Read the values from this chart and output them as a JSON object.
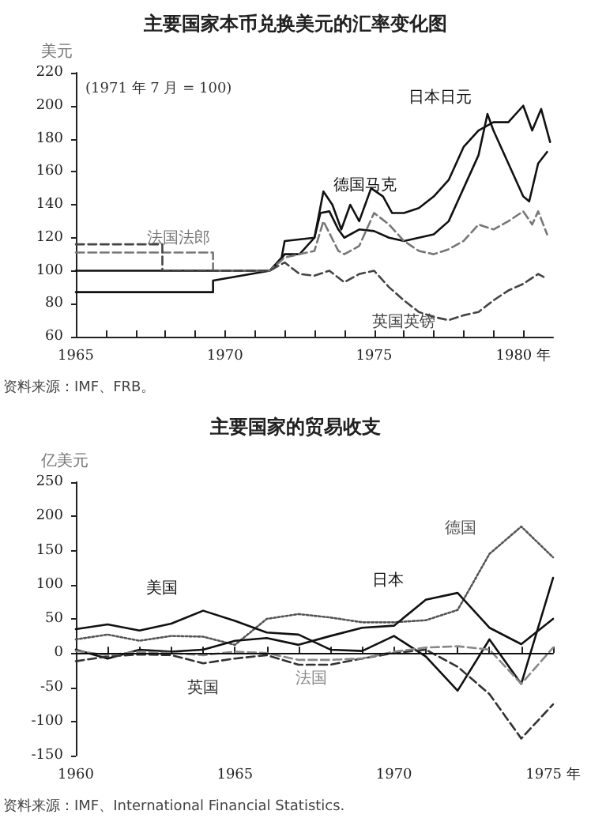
{
  "chart_data": [
    {
      "type": "line",
      "title": "主要国家本币兑换美元的汇率变化图",
      "subtitle": "(1971 年 7 月 = 100)",
      "ylabel": "美元",
      "xlim": [
        1965,
        1981
      ],
      "xticks": [
        1965,
        {
          "value": 1966,
          "label": null
        },
        {
          "value": 1967,
          "label": null
        },
        {
          "value": 1968,
          "label": null
        },
        {
          "value": 1969,
          "label": null
        },
        1970,
        {
          "value": 1971,
          "label": null
        },
        {
          "value": 1972,
          "label": null
        },
        {
          "value": 1973,
          "label": null
        },
        {
          "value": 1974,
          "label": null
        },
        1975,
        {
          "value": 1976,
          "label": null
        },
        {
          "value": 1977,
          "label": null
        },
        {
          "value": 1978,
          "label": null
        },
        {
          "value": 1979,
          "label": null
        },
        {
          "value": 1980,
          "label": "1980 年"
        }
      ],
      "ylim": [
        60,
        220
      ],
      "yticks": [
        60,
        80,
        100,
        120,
        140,
        160,
        180,
        200,
        220
      ],
      "grid": false,
      "marker": "none",
      "series": [
        {
          "name": "日本日元",
          "color": "#111111",
          "line_style": "solid",
          "x": [
            1965,
            1971.5,
            1971.9,
            1972,
            1973,
            1973.2,
            1973.5,
            1973.8,
            1974,
            1974.5,
            1975,
            1975.5,
            1976,
            1976.5,
            1977,
            1977.5,
            1978,
            1978.5,
            1978.8,
            1979,
            1979.5,
            1980,
            1980.2,
            1980.5,
            1980.8
          ],
          "values": [
            100,
            100,
            108,
            118,
            120,
            135,
            136,
            125,
            120,
            125,
            124,
            120,
            118,
            120,
            122,
            130,
            150,
            170,
            195,
            185,
            165,
            145,
            142,
            165,
            172
          ]
        },
        {
          "name": "德国马克",
          "color": "#111111",
          "line_style": "solid",
          "x": [
            1965,
            1969.6,
            1969.6,
            1971.5,
            1971.8,
            1972,
            1972.5,
            1973,
            1973.3,
            1973.6,
            1973.9,
            1974.2,
            1974.5,
            1974.9,
            1975.3,
            1975.6,
            1976,
            1976.5,
            1977,
            1977.5,
            1978,
            1978.5,
            1979,
            1979.5,
            1980,
            1980.3,
            1980.6,
            1980.9
          ],
          "values": [
            87,
            87,
            94,
            100,
            105,
            110,
            110,
            120,
            148,
            140,
            125,
            140,
            130,
            150,
            145,
            135,
            135,
            138,
            145,
            155,
            175,
            185,
            190,
            190,
            200,
            185,
            198,
            178
          ]
        },
        {
          "name": "法国法郎",
          "color": "#777777",
          "line_style": "dashed",
          "x": [
            1965,
            1969.6,
            1969.6,
            1971.5,
            1972,
            1973,
            1973.3,
            1973.8,
            1974,
            1974.5,
            1975,
            1975.5,
            1976,
            1976.5,
            1977,
            1977.5,
            1978,
            1978.5,
            1979,
            1979.5,
            1980,
            1980.3,
            1980.5,
            1980.8
          ],
          "values": [
            111,
            111,
            100,
            100,
            108,
            112,
            130,
            112,
            110,
            115,
            135,
            128,
            118,
            112,
            110,
            113,
            118,
            128,
            125,
            130,
            136,
            128,
            136,
            122
          ]
        },
        {
          "name": "英国英镑",
          "color": "#444444",
          "line_style": "dashed",
          "x": [
            1965,
            1967.9,
            1967.9,
            1971.5,
            1972,
            1972.5,
            1973,
            1973.5,
            1974,
            1974.5,
            1975,
            1975.5,
            1976,
            1976.5,
            1977,
            1977.5,
            1978,
            1978.5,
            1979,
            1979.5,
            1980,
            1980.5,
            1980.8
          ],
          "values": [
            116,
            116,
            100,
            100,
            105,
            98,
            97,
            100,
            93,
            98,
            100,
            90,
            82,
            75,
            72,
            70,
            73,
            75,
            82,
            88,
            92,
            98,
            95
          ]
        }
      ],
      "annotations": [
        "资料来源：IMF、FRB。"
      ]
    },
    {
      "type": "line",
      "title": "主要国家的贸易收支",
      "ylabel": "亿美元",
      "xlim": [
        1960,
        1975
      ],
      "xticks": [
        1960,
        {
          "value": 1961,
          "label": null
        },
        {
          "value": 1962,
          "label": null
        },
        {
          "value": 1963,
          "label": null
        },
        {
          "value": 1964,
          "label": null
        },
        1965,
        {
          "value": 1966,
          "label": null
        },
        {
          "value": 1967,
          "label": null
        },
        {
          "value": 1968,
          "label": null
        },
        {
          "value": 1969,
          "label": null
        },
        1970,
        {
          "value": 1971,
          "label": null
        },
        {
          "value": 1972,
          "label": null
        },
        {
          "value": 1973,
          "label": null
        },
        {
          "value": 1974,
          "label": null
        },
        {
          "value": 1975,
          "label": "1975 年"
        }
      ],
      "ylim": [
        -150,
        250
      ],
      "yticks": [
        -150,
        -100,
        -50,
        0,
        50,
        100,
        150,
        200,
        250
      ],
      "grid": false,
      "marker": "none",
      "x": [
        1960,
        1961,
        1962,
        1963,
        1964,
        1965,
        1966,
        1967,
        1968,
        1969,
        1970,
        1971,
        1972,
        1973,
        1974,
        1975
      ],
      "series": [
        {
          "name": "德国",
          "color": "#555555",
          "line_style": "dotted",
          "values": [
            20,
            27,
            18,
            25,
            24,
            12,
            50,
            57,
            52,
            45,
            45,
            48,
            63,
            145,
            185,
            140
          ]
        },
        {
          "name": "日本",
          "color": "#111111",
          "line_style": "solid",
          "values": [
            5,
            -8,
            5,
            2,
            5,
            18,
            22,
            12,
            25,
            37,
            40,
            78,
            88,
            37,
            13,
            50
          ]
        },
        {
          "name": "美国",
          "color": "#111111",
          "line_style": "solid",
          "values": [
            35,
            42,
            33,
            43,
            62,
            47,
            30,
            27,
            5,
            3,
            25,
            -5,
            -55,
            20,
            -45,
            110
          ]
        },
        {
          "name": "英国",
          "color": "#333333",
          "line_style": "dashed",
          "values": [
            -12,
            -5,
            -2,
            -3,
            -15,
            -8,
            -3,
            -17,
            -17,
            -8,
            0,
            5,
            -20,
            -60,
            -125,
            -75
          ]
        },
        {
          "name": "法国",
          "color": "#888888",
          "line_style": "dashed",
          "values": [
            3,
            -3,
            2,
            0,
            -3,
            2,
            0,
            -10,
            -10,
            -8,
            2,
            8,
            10,
            5,
            -45,
            8
          ]
        }
      ],
      "ref_lines": [
        {
          "axis": "y",
          "value": 0,
          "color": "#111111"
        }
      ],
      "annotations": [
        "资料来源：IMF、International Financial Statistics."
      ]
    }
  ]
}
